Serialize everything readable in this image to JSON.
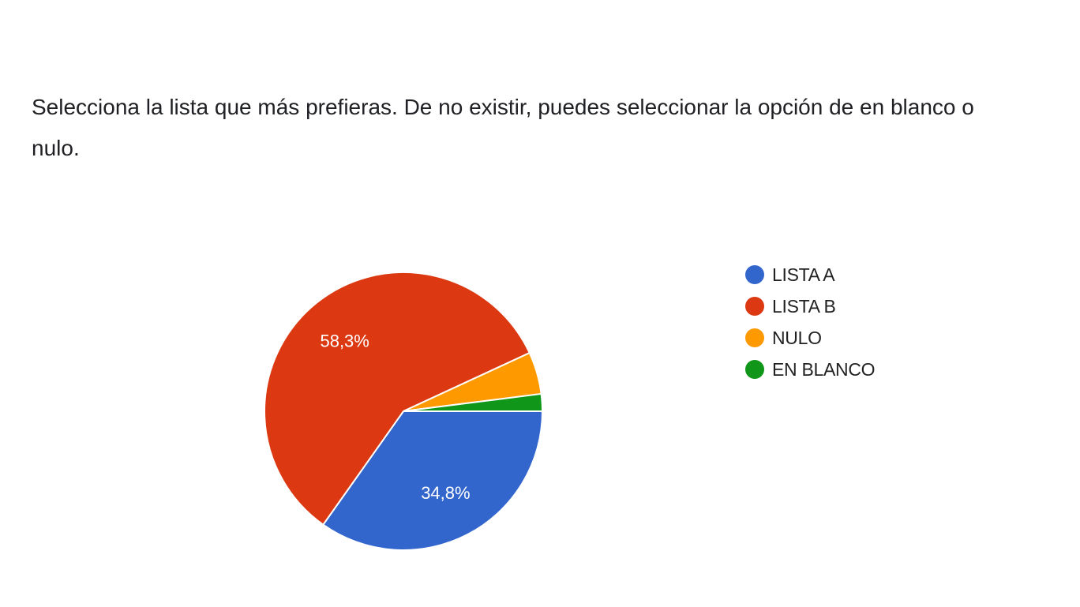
{
  "question": {
    "text": "Selecciona la lista que más prefieras. De no existir, puedes seleccionar la opción de en blanco o nulo."
  },
  "chart_data": {
    "type": "pie",
    "title": "",
    "slices": [
      {
        "name": "LISTA A",
        "value": 34.8,
        "label": "34,8%",
        "color": "#3366cc"
      },
      {
        "name": "LISTA B",
        "value": 58.3,
        "label": "58,3%",
        "color": "#dc3912"
      },
      {
        "name": "NULO",
        "value": 4.9,
        "label": "",
        "color": "#ff9900"
      },
      {
        "name": "EN BLANCO",
        "value": 2.0,
        "label": "",
        "color": "#109618"
      }
    ],
    "legend_position": "right"
  }
}
